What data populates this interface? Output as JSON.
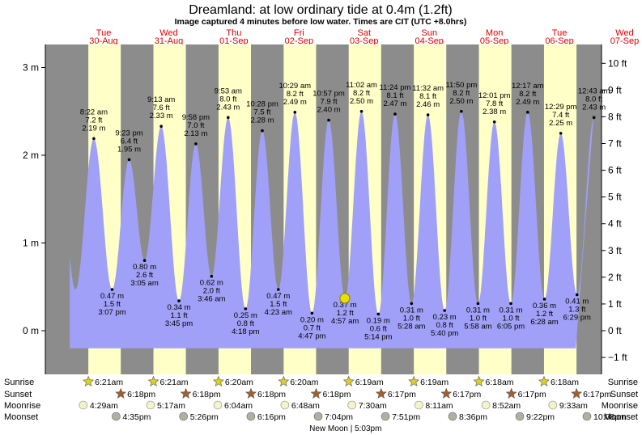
{
  "title": "Dreamland: at low  ordinary tide at 0.4m (1.2ft)",
  "subtitle": "Image captured 4 minutes before low water. Times are CIT (UTC +8.0hrs)",
  "colors": {
    "night": "#8c8c8c",
    "day": "#ffffc8",
    "tide_fill": "#a0a0f8",
    "day_label": "#dd0000",
    "now_marker": "#e8e000",
    "sun": "#e0d020",
    "sunset": "#a06030",
    "moon": "#f4f4c8",
    "moonset": "#b0b0a0"
  },
  "days": [
    {
      "name": "Tue",
      "date": "30-Aug"
    },
    {
      "name": "Wed",
      "date": "31-Aug"
    },
    {
      "name": "Thu",
      "date": "01-Sep"
    },
    {
      "name": "Fri",
      "date": "02-Sep"
    },
    {
      "name": "Sat",
      "date": "03-Sep"
    },
    {
      "name": "Sun",
      "date": "04-Sep"
    },
    {
      "name": "Mon",
      "date": "05-Sep"
    },
    {
      "name": "Tue",
      "date": "06-Sep"
    },
    {
      "name": "Wed",
      "date": "07-Sep"
    }
  ],
  "chart_data": {
    "type": "area",
    "title": "Dreamland: at low  ordinary tide at 0.4m (1.2ft)",
    "x_range_hours": [
      -9.5,
      195.5
    ],
    "x_note": "hours after 00:00 on 30-Aug, CIT",
    "ylabel_left_unit": "m",
    "ylabel_right_unit": "ft",
    "ylim_m": [
      -0.52,
      3.3
    ],
    "ticks_m": [
      {
        "value": 0,
        "label": "0 m"
      },
      {
        "value": 1,
        "label": "1 m"
      },
      {
        "value": 2,
        "label": "2 m"
      },
      {
        "value": 3,
        "label": "3 m"
      }
    ],
    "ticks_ft": [
      {
        "value": -1,
        "label": "−1 ft"
      },
      {
        "value": 0,
        "label": "0 ft"
      },
      {
        "value": 1,
        "label": "1 ft"
      },
      {
        "value": 2,
        "label": "2 ft"
      },
      {
        "value": 3,
        "label": "3 ft"
      },
      {
        "value": 4,
        "label": "4 ft"
      },
      {
        "value": 5,
        "label": "5 ft"
      },
      {
        "value": 6,
        "label": "6 ft"
      },
      {
        "value": 7,
        "label": "7 ft"
      },
      {
        "value": 8,
        "label": "8 ft"
      },
      {
        "value": 9,
        "label": "9 ft"
      },
      {
        "value": 10,
        "label": "10 ft"
      }
    ],
    "daylight": [
      {
        "sunrise": "6:21am",
        "sunset": "6:18pm"
      },
      {
        "sunrise": "6:21am",
        "sunset": "6:18pm"
      },
      {
        "sunrise": "6:20am",
        "sunset": "6:18pm"
      },
      {
        "sunrise": "6:20am",
        "sunset": "6:18pm"
      },
      {
        "sunrise": "6:19am",
        "sunset": "6:17pm"
      },
      {
        "sunrise": "6:19am",
        "sunset": "6:17pm"
      },
      {
        "sunrise": "6:18am",
        "sunset": "6:17pm"
      },
      {
        "sunrise": "6:18am",
        "sunset": "6:17pm"
      }
    ],
    "tides": [
      {
        "type": "high",
        "time": "8:22 am",
        "ft": "7.2 ft",
        "m": 2.19
      },
      {
        "type": "low",
        "time": "3:07 pm",
        "ft": "1.5 ft",
        "m": 0.47
      },
      {
        "type": "high",
        "time": "9:23 pm",
        "ft": "6.4 ft",
        "m": 1.95
      },
      {
        "type": "low",
        "time": "3:05 am",
        "ft": "2.6 ft",
        "m": 0.8
      },
      {
        "type": "high",
        "time": "9:13 am",
        "ft": "7.6 ft",
        "m": 2.33
      },
      {
        "type": "low",
        "time": "3:45 pm",
        "ft": "1.1 ft",
        "m": 0.34
      },
      {
        "type": "high",
        "time": "9:58 pm",
        "ft": "7.0 ft",
        "m": 2.13
      },
      {
        "type": "low",
        "time": "3:46 am",
        "ft": "2.0 ft",
        "m": 0.62
      },
      {
        "type": "high",
        "time": "9:53 am",
        "ft": "8.0 ft",
        "m": 2.43
      },
      {
        "type": "low",
        "time": "4:18 pm",
        "ft": "0.8 ft",
        "m": 0.25
      },
      {
        "type": "high",
        "time": "10:28 pm",
        "ft": "7.5 ft",
        "m": 2.28
      },
      {
        "type": "low",
        "time": "4:23 am",
        "ft": "1.5 ft",
        "m": 0.47
      },
      {
        "type": "high",
        "time": "10:29 am",
        "ft": "8.2 ft",
        "m": 2.49
      },
      {
        "type": "low",
        "time": "4:47 pm",
        "ft": "0.7 ft",
        "m": 0.2
      },
      {
        "type": "high",
        "time": "10:57 pm",
        "ft": "7.9 ft",
        "m": 2.4
      },
      {
        "type": "low",
        "time": "4:57 am",
        "ft": "1.2 ft",
        "m": 0.37
      },
      {
        "type": "high",
        "time": "11:02 am",
        "ft": "8.2 ft",
        "m": 2.5
      },
      {
        "type": "low",
        "time": "5:14 pm",
        "ft": "0.6 ft",
        "m": 0.19
      },
      {
        "type": "high",
        "time": "11:24 pm",
        "ft": "8.1 ft",
        "m": 2.47
      },
      {
        "type": "low",
        "time": "5:28 am",
        "ft": "1.0 ft",
        "m": 0.31
      },
      {
        "type": "high",
        "time": "11:32 am",
        "ft": "8.1 ft",
        "m": 2.46
      },
      {
        "type": "low",
        "time": "5:40 pm",
        "ft": "0.8 ft",
        "m": 0.23
      },
      {
        "type": "high",
        "time": "11:50 pm",
        "ft": "8.2 ft",
        "m": 2.5
      },
      {
        "type": "low",
        "time": "5:58 am",
        "ft": "1.0 ft",
        "m": 0.31
      },
      {
        "type": "high",
        "time": "12:01 pm",
        "ft": "7.8 ft",
        "m": 2.38
      },
      {
        "type": "low",
        "time": "6:05 pm",
        "ft": "1.0 ft",
        "m": 0.31
      },
      {
        "type": "high",
        "time": "12:17 am",
        "ft": "8.2 ft",
        "m": 2.49
      },
      {
        "type": "low",
        "time": "6:28 am",
        "ft": "1.2 ft",
        "m": 0.36
      },
      {
        "type": "high",
        "time": "12:29 pm",
        "ft": "7.4 ft",
        "m": 2.25
      },
      {
        "type": "low",
        "time": "6:29 pm",
        "ft": "1.3 ft",
        "m": 0.41
      },
      {
        "type": "high",
        "time": "12:43 am",
        "ft": "8.0 ft",
        "m": 2.43
      }
    ],
    "current": {
      "m": 0.37,
      "time_note": "4 minutes before low water"
    },
    "grid": false
  },
  "astro": {
    "rows": [
      "Sunrise",
      "Sunset",
      "Moonrise",
      "Moonset"
    ],
    "sunrise": [
      "6:21am",
      "6:21am",
      "6:20am",
      "6:20am",
      "6:19am",
      "6:19am",
      "6:18am",
      "6:18am"
    ],
    "sunset": [
      "6:18pm",
      "6:18pm",
      "6:18pm",
      "6:18pm",
      "6:17pm",
      "6:17pm",
      "6:17pm",
      "6:17pm"
    ],
    "moonrise": [
      "4:29am",
      "5:17am",
      "6:04am",
      "6:48am",
      "7:30am",
      "8:11am",
      "8:52am",
      "9:33am"
    ],
    "moonset": [
      "4:35pm",
      "5:26pm",
      "6:16pm",
      "7:04pm",
      "7:51pm",
      "8:36pm",
      "9:22pm",
      "10:08pm"
    ],
    "new_moon": "New Moon | 5:03pm"
  }
}
